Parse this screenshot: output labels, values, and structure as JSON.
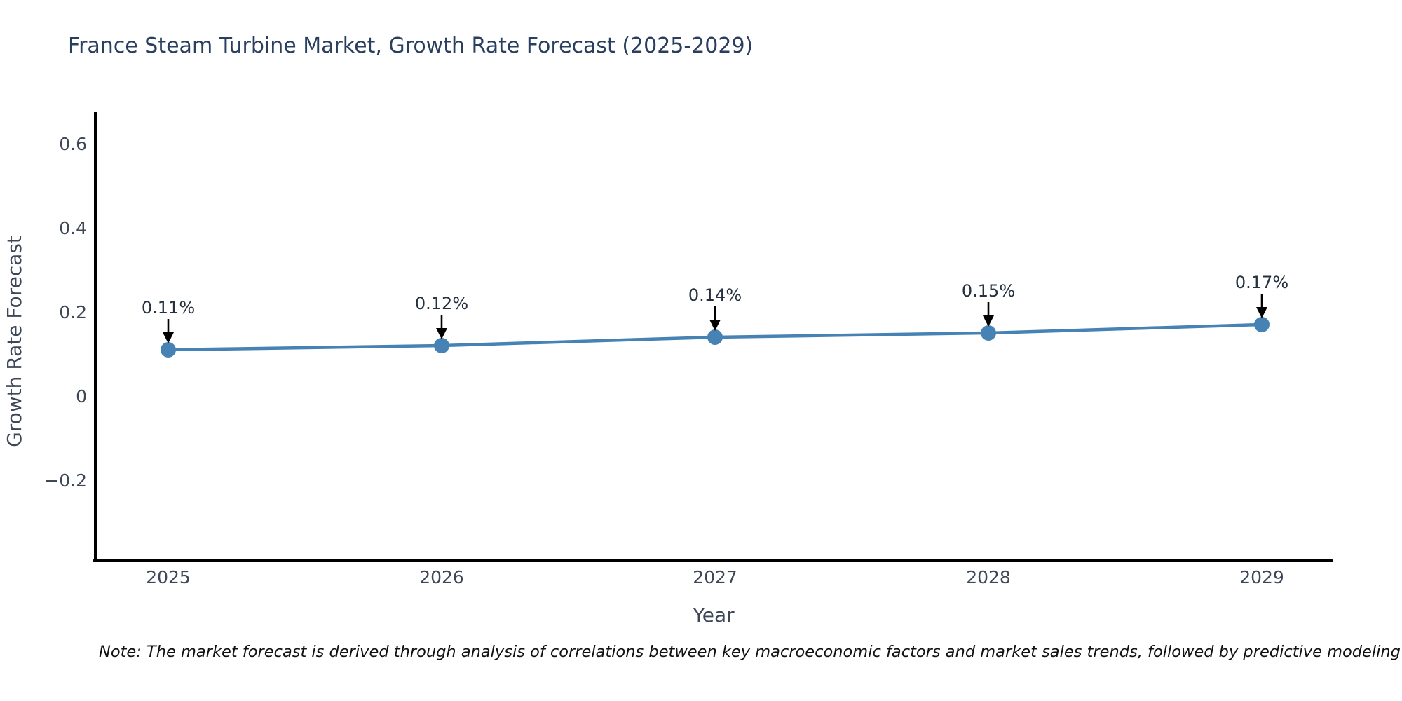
{
  "page": {
    "background": "#ffffff"
  },
  "chart_data": {
    "type": "line",
    "title": "France Steam Turbine Market, Growth Rate Forecast (2025-2029)",
    "xlabel": "Year",
    "ylabel": "Growth Rate Forecast",
    "x": [
      "2025",
      "2026",
      "2027",
      "2028",
      "2029"
    ],
    "values": [
      0.11,
      0.12,
      0.14,
      0.15,
      0.17
    ],
    "point_labels": [
      "0.11%",
      "0.12%",
      "0.14%",
      "0.15%",
      "0.17%"
    ],
    "yticks": [
      {
        "label": "0.6",
        "value": 0.6
      },
      {
        "label": "0.4",
        "value": 0.4
      },
      {
        "label": "0.2",
        "value": 0.2
      },
      {
        "label": "0",
        "value": 0
      },
      {
        "label": "−0.2",
        "value": -0.2
      }
    ],
    "ylim": [
      -0.4,
      0.68
    ],
    "grid": false,
    "legend": "none",
    "line_color": "#4682b4",
    "marker_color": "#4682b4",
    "axis_color": "#000000",
    "tick_color": "#3d4757",
    "title_color": "#2a3f5f",
    "annotation_color": "#26313f",
    "arrow_color": "#000000",
    "note": "Note: The market forecast is derived through analysis of correlations between key macroeconomic factors and market sales trends, followed by predictive modeling to project future sales"
  }
}
